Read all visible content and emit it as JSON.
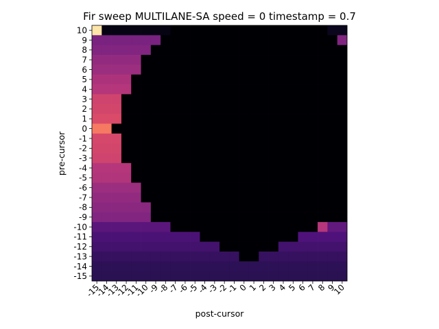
{
  "chart_data": {
    "type": "heatmap",
    "title": "Fir sweep MULTILANE-SA speed = 0 timestamp = 0.7",
    "xlabel": "post-cursor",
    "ylabel": "pre-cursor",
    "x_ticks": [
      "-15",
      "-14",
      "-13",
      "-12",
      "-11",
      "-10",
      "-9",
      "-8",
      "-7",
      "-6",
      "-5",
      "-4",
      "-3",
      "-2",
      "-1",
      "0",
      "1",
      "2",
      "3",
      "4",
      "5",
      "6",
      "7",
      "8",
      "9",
      "10"
    ],
    "y_ticks": [
      "10",
      "9",
      "8",
      "7",
      "6",
      "5",
      "4",
      "3",
      "2",
      "1",
      "0",
      "-1",
      "-2",
      "-3",
      "-4",
      "-5",
      "-6",
      "-7",
      "-8",
      "-9",
      "-10",
      "-11",
      "-12",
      "-13",
      "-14",
      "-15"
    ],
    "colormap": "magma",
    "value_range": [
      0,
      1
    ],
    "grid": false,
    "legend": "none",
    "rows": [
      {
        "pre": "10",
        "bands": [
          [
            1,
            0.95
          ],
          [
            7,
            0.03
          ],
          [
            16,
            0.0
          ],
          [
            2,
            0.05
          ]
        ]
      },
      {
        "pre": "9",
        "bands": [
          [
            7,
            0.36
          ],
          [
            18,
            0.0
          ],
          [
            1,
            0.38
          ]
        ]
      },
      {
        "pre": "8",
        "bands": [
          [
            6,
            0.38
          ],
          [
            20,
            0.0
          ]
        ]
      },
      {
        "pre": "7",
        "bands": [
          [
            5,
            0.42
          ],
          [
            21,
            0.0
          ]
        ]
      },
      {
        "pre": "6",
        "bands": [
          [
            5,
            0.44
          ],
          [
            21,
            0.0
          ]
        ]
      },
      {
        "pre": "5",
        "bands": [
          [
            4,
            0.48
          ],
          [
            22,
            0.0
          ]
        ]
      },
      {
        "pre": "4",
        "bands": [
          [
            4,
            0.5
          ],
          [
            22,
            0.0
          ]
        ]
      },
      {
        "pre": "3",
        "bands": [
          [
            3,
            0.57
          ],
          [
            23,
            0.0
          ]
        ]
      },
      {
        "pre": "2",
        "bands": [
          [
            3,
            0.58
          ],
          [
            23,
            0.0
          ]
        ]
      },
      {
        "pre": "1",
        "bands": [
          [
            3,
            0.6
          ],
          [
            23,
            0.0
          ]
        ]
      },
      {
        "pre": "0",
        "bands": [
          [
            2,
            0.72
          ],
          [
            24,
            0.0
          ]
        ]
      },
      {
        "pre": "-1",
        "bands": [
          [
            3,
            0.59
          ],
          [
            23,
            0.0
          ]
        ]
      },
      {
        "pre": "-2",
        "bands": [
          [
            3,
            0.58
          ],
          [
            23,
            0.0
          ]
        ]
      },
      {
        "pre": "-3",
        "bands": [
          [
            3,
            0.57
          ],
          [
            23,
            0.0
          ]
        ]
      },
      {
        "pre": "-4",
        "bands": [
          [
            4,
            0.5
          ],
          [
            22,
            0.0
          ]
        ]
      },
      {
        "pre": "-5",
        "bands": [
          [
            4,
            0.49
          ],
          [
            22,
            0.0
          ]
        ]
      },
      {
        "pre": "-6",
        "bands": [
          [
            5,
            0.44
          ],
          [
            21,
            0.0
          ]
        ]
      },
      {
        "pre": "-7",
        "bands": [
          [
            5,
            0.42
          ],
          [
            21,
            0.0
          ]
        ]
      },
      {
        "pre": "-8",
        "bands": [
          [
            6,
            0.4
          ],
          [
            20,
            0.0
          ]
        ]
      },
      {
        "pre": "-9",
        "bands": [
          [
            6,
            0.38
          ],
          [
            20,
            0.0
          ]
        ]
      },
      {
        "pre": "-10",
        "bands": [
          [
            8,
            0.28
          ],
          [
            15,
            0.0
          ],
          [
            1,
            0.5
          ],
          [
            2,
            0.3
          ]
        ]
      },
      {
        "pre": "-11",
        "bands": [
          [
            11,
            0.24
          ],
          [
            10,
            0.0
          ],
          [
            5,
            0.25
          ]
        ]
      },
      {
        "pre": "-12",
        "bands": [
          [
            13,
            0.22
          ],
          [
            6,
            0.0
          ],
          [
            7,
            0.22
          ]
        ]
      },
      {
        "pre": "-13",
        "bands": [
          [
            15,
            0.19
          ],
          [
            2,
            0.0
          ],
          [
            9,
            0.19
          ]
        ]
      },
      {
        "pre": "-14",
        "bands": [
          [
            26,
            0.17
          ]
        ]
      },
      {
        "pre": "-15",
        "bands": [
          [
            26,
            0.16
          ]
        ]
      }
    ]
  }
}
